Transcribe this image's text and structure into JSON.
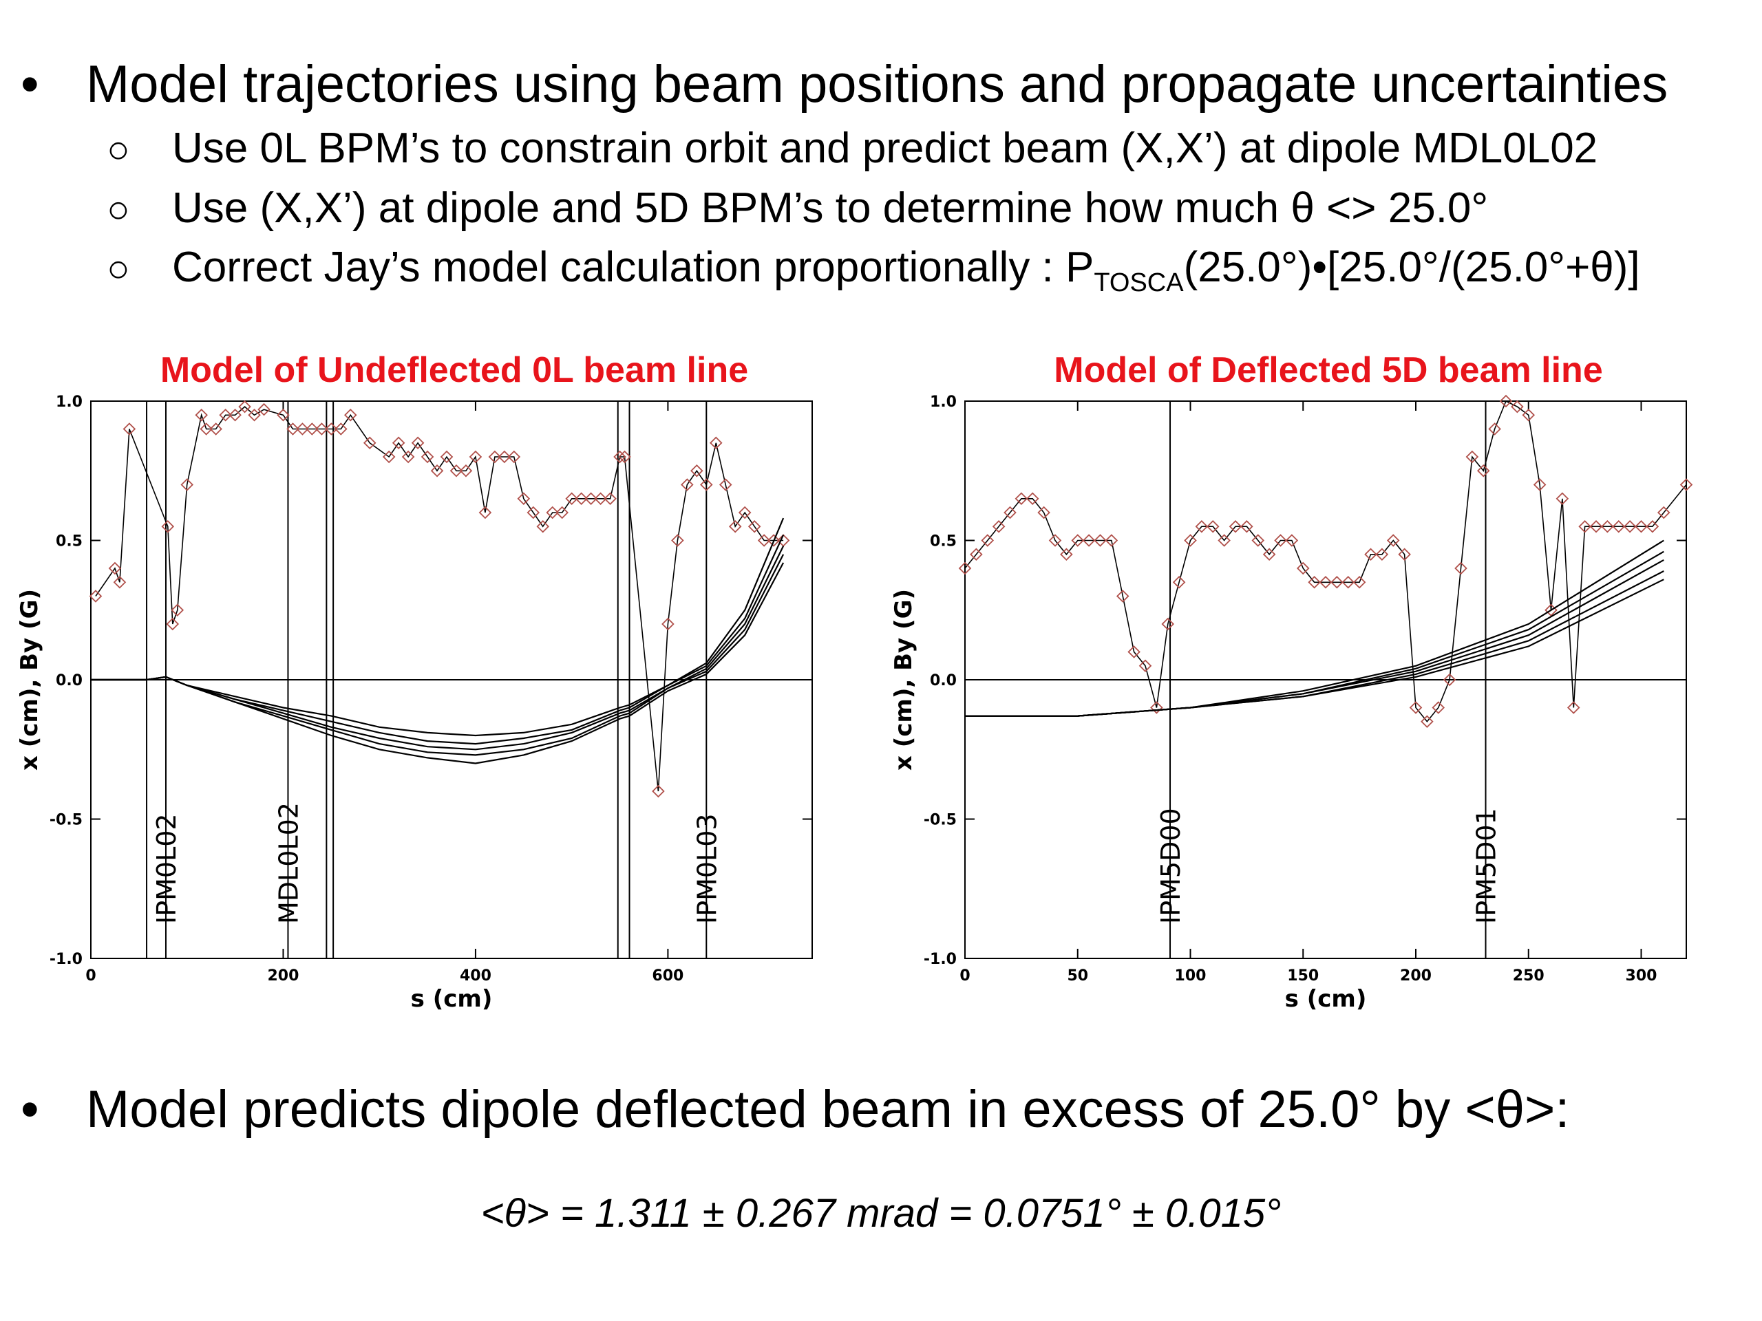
{
  "bullets": {
    "main1": "Model trajectories using beam positions and propagate uncertainties",
    "sub1": "Use 0L BPM’s to constrain orbit and predict beam (X,X’) at dipole MDL0L02",
    "sub2": "Use (X,X’) at dipole and 5D BPM’s to determine how much θ <> 25.0°",
    "sub3_pre": "Correct Jay’s model calculation proportionally : P",
    "sub3_sub": "TOSCA",
    "sub3_post": "(25.0°)•[25.0°/(25.0°+θ)]",
    "main2": "Model predicts dipole deflected beam in excess of 25.0° by <θ>:",
    "bullet_symbol": "•",
    "sub_symbol": "○"
  },
  "formula": "<θ> = 1.311 ± 0.267 mrad = 0.0751° ± 0.015°",
  "colors": {
    "title": "#e8141b",
    "marker": "#b0504a",
    "line": "#000000"
  },
  "chart_data": [
    {
      "type": "line",
      "title": "Model of Undeflected 0L beam line",
      "xlabel": "s (cm)",
      "ylabel": "x (cm), By (G)",
      "xlim": [
        0,
        750
      ],
      "ylim": [
        -1.0,
        1.0
      ],
      "xticks": [
        0,
        200,
        400,
        600
      ],
      "yticks": [
        1.0,
        0.5,
        0.0,
        -0.5,
        -1.0
      ],
      "elements": [
        {
          "s": 58,
          "label": ""
        },
        {
          "s": 78,
          "label": "IPM0L02"
        },
        {
          "s": 205,
          "label": "MDL0L02"
        },
        {
          "s": 245,
          "label": ""
        },
        {
          "s": 252,
          "label": ""
        },
        {
          "s": 548,
          "label": ""
        },
        {
          "s": 560,
          "label": ""
        },
        {
          "s": 640,
          "label": "IPM0L03"
        }
      ],
      "field_markers": {
        "s": [
          5,
          25,
          30,
          40,
          80,
          85,
          90,
          100,
          115,
          120,
          130,
          140,
          150,
          160,
          170,
          180,
          200,
          210,
          220,
          230,
          240,
          250,
          260,
          270,
          290,
          310,
          320,
          330,
          340,
          350,
          360,
          370,
          380,
          390,
          400,
          410,
          420,
          430,
          440,
          450,
          460,
          470,
          480,
          490,
          500,
          510,
          520,
          530,
          540,
          550,
          555,
          590,
          600,
          610,
          620,
          630,
          640,
          650,
          660,
          670,
          680,
          690,
          700,
          710,
          720
        ],
        "By": [
          0.3,
          0.4,
          0.35,
          0.9,
          0.55,
          0.2,
          0.25,
          0.7,
          0.95,
          0.9,
          0.9,
          0.95,
          0.95,
          0.98,
          0.95,
          0.97,
          0.95,
          0.9,
          0.9,
          0.9,
          0.9,
          0.9,
          0.9,
          0.95,
          0.85,
          0.8,
          0.85,
          0.8,
          0.85,
          0.8,
          0.75,
          0.8,
          0.75,
          0.75,
          0.8,
          0.6,
          0.8,
          0.8,
          0.8,
          0.65,
          0.6,
          0.55,
          0.6,
          0.6,
          0.65,
          0.65,
          0.65,
          0.65,
          0.65,
          0.8,
          0.8,
          -0.4,
          0.2,
          0.5,
          0.7,
          0.75,
          0.7,
          0.85,
          0.7,
          0.55,
          0.6,
          0.55,
          0.5,
          0.5,
          0.5
        ]
      },
      "trajectories": {
        "s": [
          0,
          58,
          78,
          100,
          150,
          200,
          250,
          300,
          350,
          400,
          450,
          500,
          550,
          560,
          600,
          640,
          680,
          720
        ],
        "series": [
          {
            "x": [
              0,
              0,
              0.01,
              -0.02,
              -0.06,
              -0.1,
              -0.13,
              -0.17,
              -0.19,
              -0.2,
              -0.19,
              -0.16,
              -0.1,
              -0.09,
              -0.02,
              0.06,
              0.25,
              0.58
            ]
          },
          {
            "x": [
              0,
              0,
              0.01,
              -0.02,
              -0.07,
              -0.11,
              -0.15,
              -0.19,
              -0.22,
              -0.23,
              -0.21,
              -0.18,
              -0.11,
              -0.1,
              -0.02,
              0.05,
              0.22,
              0.52
            ]
          },
          {
            "x": [
              0,
              0,
              0.01,
              -0.02,
              -0.07,
              -0.12,
              -0.17,
              -0.21,
              -0.24,
              -0.25,
              -0.23,
              -0.19,
              -0.12,
              -0.11,
              -0.03,
              0.04,
              0.2,
              0.48
            ]
          },
          {
            "x": [
              0,
              0,
              0.01,
              -0.02,
              -0.08,
              -0.13,
              -0.18,
              -0.23,
              -0.26,
              -0.27,
              -0.25,
              -0.21,
              -0.13,
              -0.12,
              -0.03,
              0.03,
              0.18,
              0.45
            ]
          },
          {
            "x": [
              0,
              0,
              0.01,
              -0.02,
              -0.08,
              -0.14,
              -0.2,
              -0.25,
              -0.28,
              -0.3,
              -0.27,
              -0.22,
              -0.14,
              -0.13,
              -0.04,
              0.02,
              0.16,
              0.42
            ]
          }
        ]
      }
    },
    {
      "type": "line",
      "title": "Model of Deflected 5D beam line",
      "xlabel": "s (cm)",
      "ylabel": "x (cm), By (G)",
      "xlim": [
        0,
        320
      ],
      "ylim": [
        -1.0,
        1.0
      ],
      "xticks": [
        0,
        50,
        100,
        150,
        200,
        250,
        300
      ],
      "yticks": [
        1.0,
        0.5,
        0.0,
        -0.5,
        -1.0
      ],
      "elements": [
        {
          "s": 91,
          "label": "IPM5D00"
        },
        {
          "s": 231,
          "label": "IPM5D01"
        }
      ],
      "field_markers": {
        "s": [
          0,
          5,
          10,
          15,
          20,
          25,
          30,
          35,
          40,
          45,
          50,
          55,
          60,
          65,
          70,
          75,
          80,
          85,
          90,
          95,
          100,
          105,
          110,
          115,
          120,
          125,
          130,
          135,
          140,
          145,
          150,
          155,
          160,
          165,
          170,
          175,
          180,
          185,
          190,
          195,
          200,
          205,
          210,
          215,
          220,
          225,
          230,
          235,
          240,
          245,
          250,
          255,
          260,
          265,
          270,
          275,
          280,
          285,
          290,
          295,
          300,
          305,
          310,
          320
        ],
        "By": [
          0.4,
          0.45,
          0.5,
          0.55,
          0.6,
          0.65,
          0.65,
          0.6,
          0.5,
          0.45,
          0.5,
          0.5,
          0.5,
          0.5,
          0.3,
          0.1,
          0.05,
          -0.1,
          0.2,
          0.35,
          0.5,
          0.55,
          0.55,
          0.5,
          0.55,
          0.55,
          0.5,
          0.45,
          0.5,
          0.5,
          0.4,
          0.35,
          0.35,
          0.35,
          0.35,
          0.35,
          0.45,
          0.45,
          0.5,
          0.45,
          -0.1,
          -0.15,
          -0.1,
          0.0,
          0.4,
          0.8,
          0.75,
          0.9,
          1.0,
          0.98,
          0.95,
          0.7,
          0.25,
          0.65,
          -0.1,
          0.55,
          0.55,
          0.55,
          0.55,
          0.55,
          0.55,
          0.55,
          0.6,
          0.7
        ]
      },
      "trajectories": {
        "s": [
          0,
          50,
          100,
          150,
          200,
          250,
          310
        ],
        "series": [
          {
            "x": [
              -0.13,
              -0.13,
              -0.1,
              -0.04,
              0.05,
              0.2,
              0.5
            ]
          },
          {
            "x": [
              -0.13,
              -0.13,
              -0.1,
              -0.05,
              0.04,
              0.18,
              0.46
            ]
          },
          {
            "x": [
              -0.13,
              -0.13,
              -0.1,
              -0.05,
              0.03,
              0.16,
              0.43
            ]
          },
          {
            "x": [
              -0.13,
              -0.13,
              -0.1,
              -0.06,
              0.02,
              0.14,
              0.39
            ]
          },
          {
            "x": [
              -0.13,
              -0.13,
              -0.1,
              -0.06,
              0.01,
              0.12,
              0.36
            ]
          }
        ]
      }
    }
  ]
}
